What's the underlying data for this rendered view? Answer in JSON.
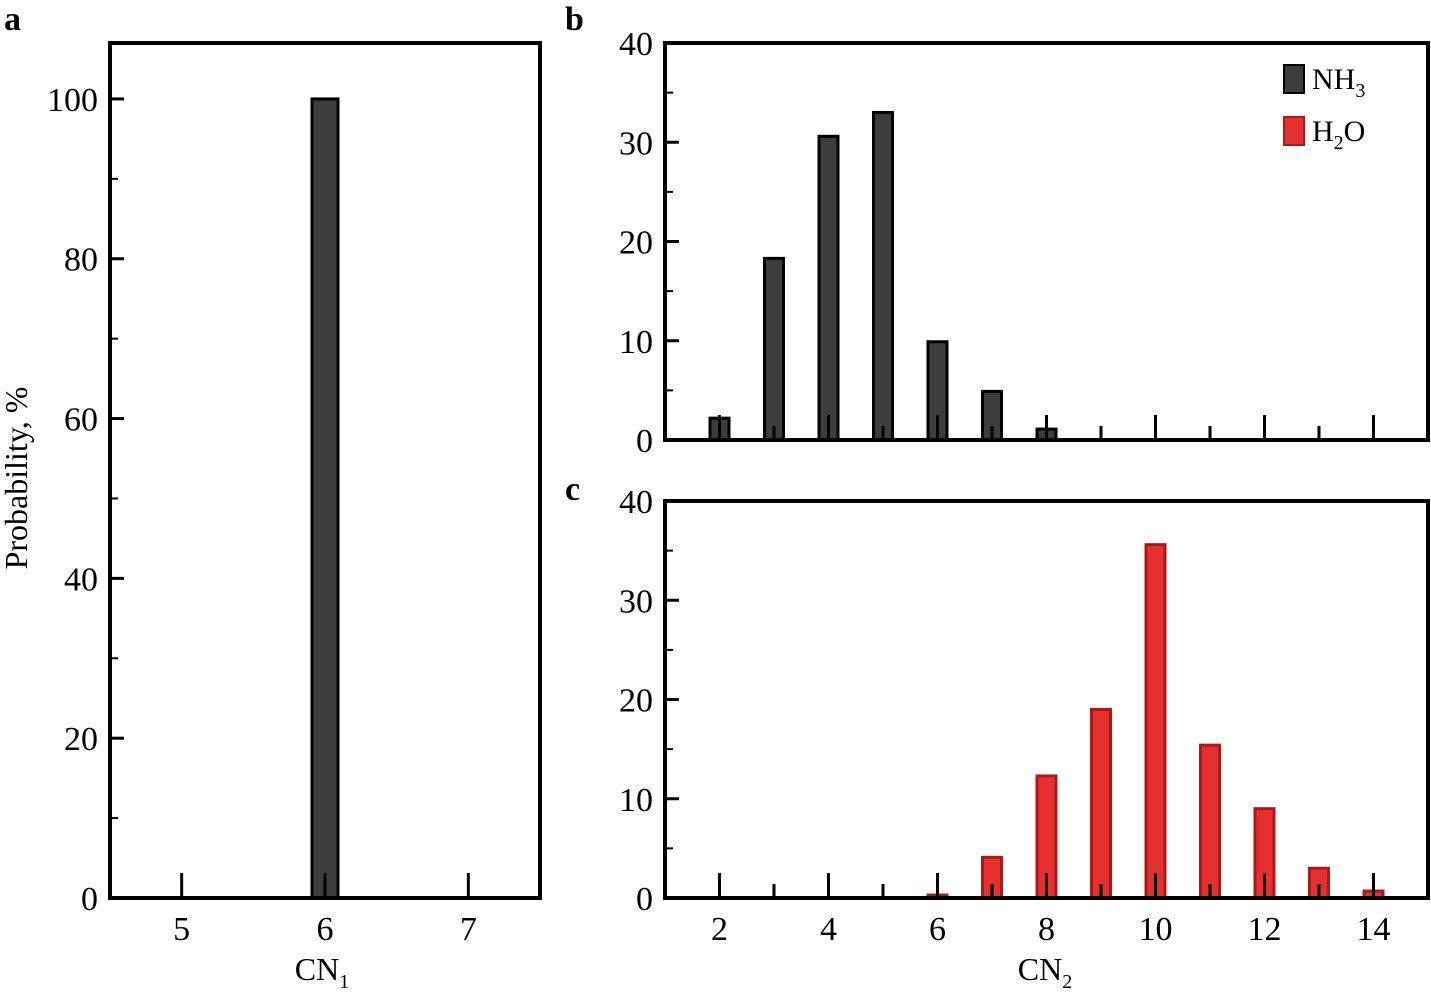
{
  "chart_data": [
    {
      "panel": "a",
      "type": "bar",
      "xlabel": "CN",
      "xlabel_sub": "1",
      "ylabel": "Probability, %",
      "xlim": [
        4.5,
        7.5
      ],
      "ylim": [
        0,
        107
      ],
      "xticks": [
        5,
        6,
        7
      ],
      "yticks": [
        0,
        20,
        40,
        60,
        80,
        100
      ],
      "series": [
        {
          "name": "",
          "color": "#3d3d3d",
          "x": [
            6
          ],
          "values": [
            100
          ]
        }
      ]
    },
    {
      "panel": "b",
      "type": "bar",
      "xlim": [
        1,
        15
      ],
      "ylim": [
        0,
        40
      ],
      "xticks": [
        2,
        4,
        6,
        8,
        10,
        12,
        14
      ],
      "yticks": [
        0,
        10,
        20,
        30,
        40
      ],
      "show_x_tick_labels": false,
      "series": [
        {
          "name": "NH",
          "name_sub": "3",
          "color": "#3d3d3d",
          "x": [
            2,
            3,
            4,
            5,
            6,
            7,
            8
          ],
          "values": [
            2.2,
            18.3,
            30.6,
            33.0,
            9.9,
            4.9,
            1.1
          ]
        }
      ],
      "legend": {
        "position": "top-right",
        "entries": [
          {
            "label": "NH",
            "sub": "3",
            "color": "#3d3d3d"
          },
          {
            "label": "H",
            "sub": "2",
            "tail": "O",
            "color": "#e53030"
          }
        ]
      }
    },
    {
      "panel": "c",
      "type": "bar",
      "xlabel": "CN",
      "xlabel_sub": "2",
      "xlim": [
        1,
        15
      ],
      "ylim": [
        0,
        40
      ],
      "xticks": [
        2,
        4,
        6,
        8,
        10,
        12,
        14
      ],
      "yticks": [
        0,
        10,
        20,
        30,
        40
      ],
      "series": [
        {
          "name": "H",
          "name_sub": "2",
          "name_tail": "O",
          "color": "#e53030",
          "x": [
            6,
            7,
            8,
            9,
            10,
            11,
            12,
            13,
            14
          ],
          "values": [
            0.3,
            4.1,
            12.3,
            19.0,
            35.6,
            15.4,
            9.0,
            3.0,
            0.7
          ]
        }
      ]
    }
  ]
}
